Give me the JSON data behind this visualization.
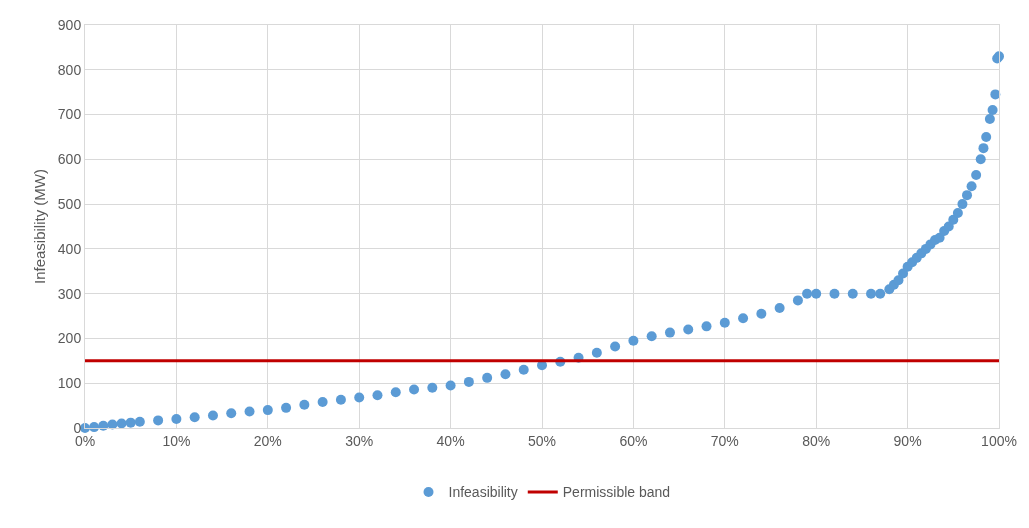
{
  "chart_data": {
    "type": "scatter",
    "ylabel": "Infeasibility (MW)",
    "x": [
      0,
      1,
      2,
      3,
      4,
      5,
      6,
      8,
      10,
      12,
      14,
      16,
      18,
      20,
      22,
      24,
      26,
      28,
      30,
      32,
      34,
      36,
      38,
      40,
      42,
      44,
      46,
      48,
      50,
      52,
      54,
      56,
      58,
      60,
      62,
      64,
      66,
      68,
      70,
      72,
      74,
      76,
      78,
      79,
      80,
      82,
      84,
      86,
      87,
      88,
      88.5,
      89,
      89.5,
      90,
      90.5,
      91,
      91.5,
      92,
      92.5,
      93,
      93.5,
      94,
      94.5,
      95,
      95.5,
      96,
      96.5,
      97,
      97.5,
      98,
      98.3,
      98.6,
      99,
      99.3,
      99.6,
      99.8,
      100
    ],
    "series": [
      {
        "name": "Infeasibility",
        "color": "#5b9bd5",
        "values": [
          0,
          2,
          5,
          8,
          10,
          12,
          14,
          17,
          20,
          24,
          28,
          33,
          37,
          40,
          45,
          52,
          58,
          63,
          68,
          73,
          80,
          86,
          90,
          95,
          103,
          112,
          120,
          130,
          140,
          148,
          157,
          168,
          182,
          195,
          205,
          213,
          220,
          227,
          235,
          245,
          255,
          268,
          285,
          300,
          300,
          300,
          300,
          300,
          300,
          310,
          320,
          330,
          345,
          360,
          370,
          380,
          390,
          400,
          410,
          420,
          425,
          440,
          450,
          465,
          480,
          500,
          520,
          540,
          565,
          600,
          625,
          650,
          690,
          710,
          745,
          825,
          830
        ]
      },
      {
        "name": "Permissible band",
        "type": "line",
        "color": "#c00000",
        "x": [
          0,
          100
        ],
        "values": [
          150,
          150
        ],
        "marker": "none",
        "line_style": "solid"
      }
    ],
    "xlim": [
      0,
      100
    ],
    "xticks": [
      {
        "value": 0,
        "label": "0%"
      },
      {
        "value": 10,
        "label": "10%"
      },
      {
        "value": 20,
        "label": "20%"
      },
      {
        "value": 30,
        "label": "30%"
      },
      {
        "value": 40,
        "label": "40%"
      },
      {
        "value": 50,
        "label": "50%"
      },
      {
        "value": 60,
        "label": "60%"
      },
      {
        "value": 70,
        "label": "70%"
      },
      {
        "value": 80,
        "label": "80%"
      },
      {
        "value": 90,
        "label": "90%"
      },
      {
        "value": 100,
        "label": "100%"
      }
    ],
    "ylim": [
      0,
      900
    ],
    "yticks": [
      0,
      100,
      200,
      300,
      400,
      500,
      600,
      700,
      800,
      900
    ],
    "grid": true,
    "legend": "bottom",
    "marker": "circle"
  }
}
